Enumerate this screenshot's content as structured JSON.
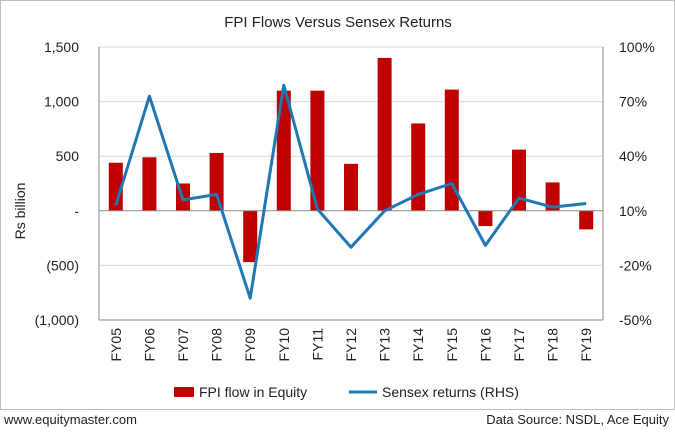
{
  "footer": {
    "website": "www.equitymaster.com",
    "source": "Data Source: NSDL, Ace Equity"
  },
  "colors": {
    "bar": "#c00000",
    "line": "#1f77b4",
    "grid": "#d9d9d9"
  },
  "chart_data": {
    "type": "bar",
    "title": "FPI Flows Versus Sensex Returns",
    "xlabel": "",
    "ylabel": "Rs billion",
    "categories": [
      "FY05",
      "FY06",
      "FY07",
      "FY08",
      "FY09",
      "FY10",
      "FY11",
      "FY12",
      "FY13",
      "FY14",
      "FY15",
      "FY16",
      "FY17",
      "FY18",
      "FY19"
    ],
    "ylim": [
      -1000,
      1500
    ],
    "y_ticks": [
      -1000,
      -500,
      0,
      500,
      1000,
      1500
    ],
    "y_tick_labels": [
      "(1,000)",
      "(500)",
      "-",
      "500",
      "1,000",
      "1,500"
    ],
    "y2lim": [
      -50,
      100
    ],
    "y2_ticks": [
      -50,
      -20,
      10,
      40,
      70,
      100
    ],
    "y2_tick_labels": [
      "-50%",
      "-20%",
      "10%",
      "40%",
      "70%",
      "100%"
    ],
    "grid": true,
    "legend_position": "bottom",
    "series": [
      {
        "name": "FPI flow in Equity",
        "type": "bar",
        "axis": "left",
        "values": [
          440,
          490,
          250,
          530,
          -470,
          1100,
          1100,
          430,
          1400,
          800,
          1110,
          -140,
          560,
          260,
          -170
        ]
      },
      {
        "name": "Sensex returns (RHS)",
        "type": "line",
        "axis": "right",
        "values": [
          13,
          73,
          16,
          19,
          -38,
          79,
          11,
          -10,
          10,
          19,
          25,
          -9,
          17,
          12,
          14
        ]
      }
    ]
  }
}
